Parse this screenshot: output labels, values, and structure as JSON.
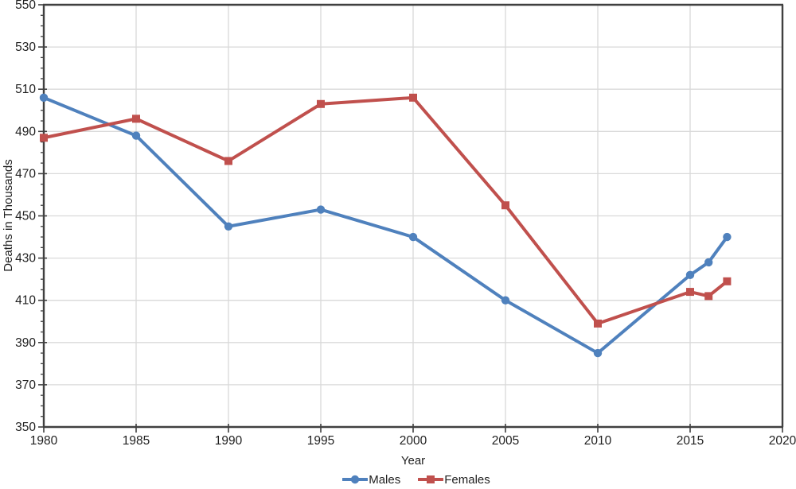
{
  "chart_data": {
    "type": "line",
    "title": "",
    "xlabel": "Year",
    "ylabel": "Deaths in Thousands",
    "xlim": [
      1980,
      2020
    ],
    "ylim": [
      350,
      550
    ],
    "x_ticks": [
      1980,
      1985,
      1990,
      1995,
      2000,
      2005,
      2010,
      2015,
      2020
    ],
    "y_ticks": [
      350,
      370,
      390,
      410,
      430,
      450,
      470,
      490,
      510,
      530,
      550
    ],
    "y_minor_step": 5,
    "grid": true,
    "legend_position": "bottom-center",
    "x": [
      1980,
      1985,
      1990,
      1995,
      2000,
      2005,
      2010,
      2015,
      2016,
      2017
    ],
    "series": [
      {
        "name": "Males",
        "marker": "circle",
        "color": "#4F81BD",
        "values": [
          506,
          488,
          445,
          453,
          440,
          410,
          385,
          422,
          428,
          440
        ]
      },
      {
        "name": "Females",
        "marker": "square",
        "color": "#C0504D",
        "values": [
          487,
          496,
          476,
          503,
          506,
          455,
          399,
          414,
          412,
          419
        ]
      }
    ],
    "colors": {
      "grid": "#d9d9d9",
      "axis": "#404040",
      "text": "#1f1f1f",
      "background": "#ffffff"
    }
  }
}
